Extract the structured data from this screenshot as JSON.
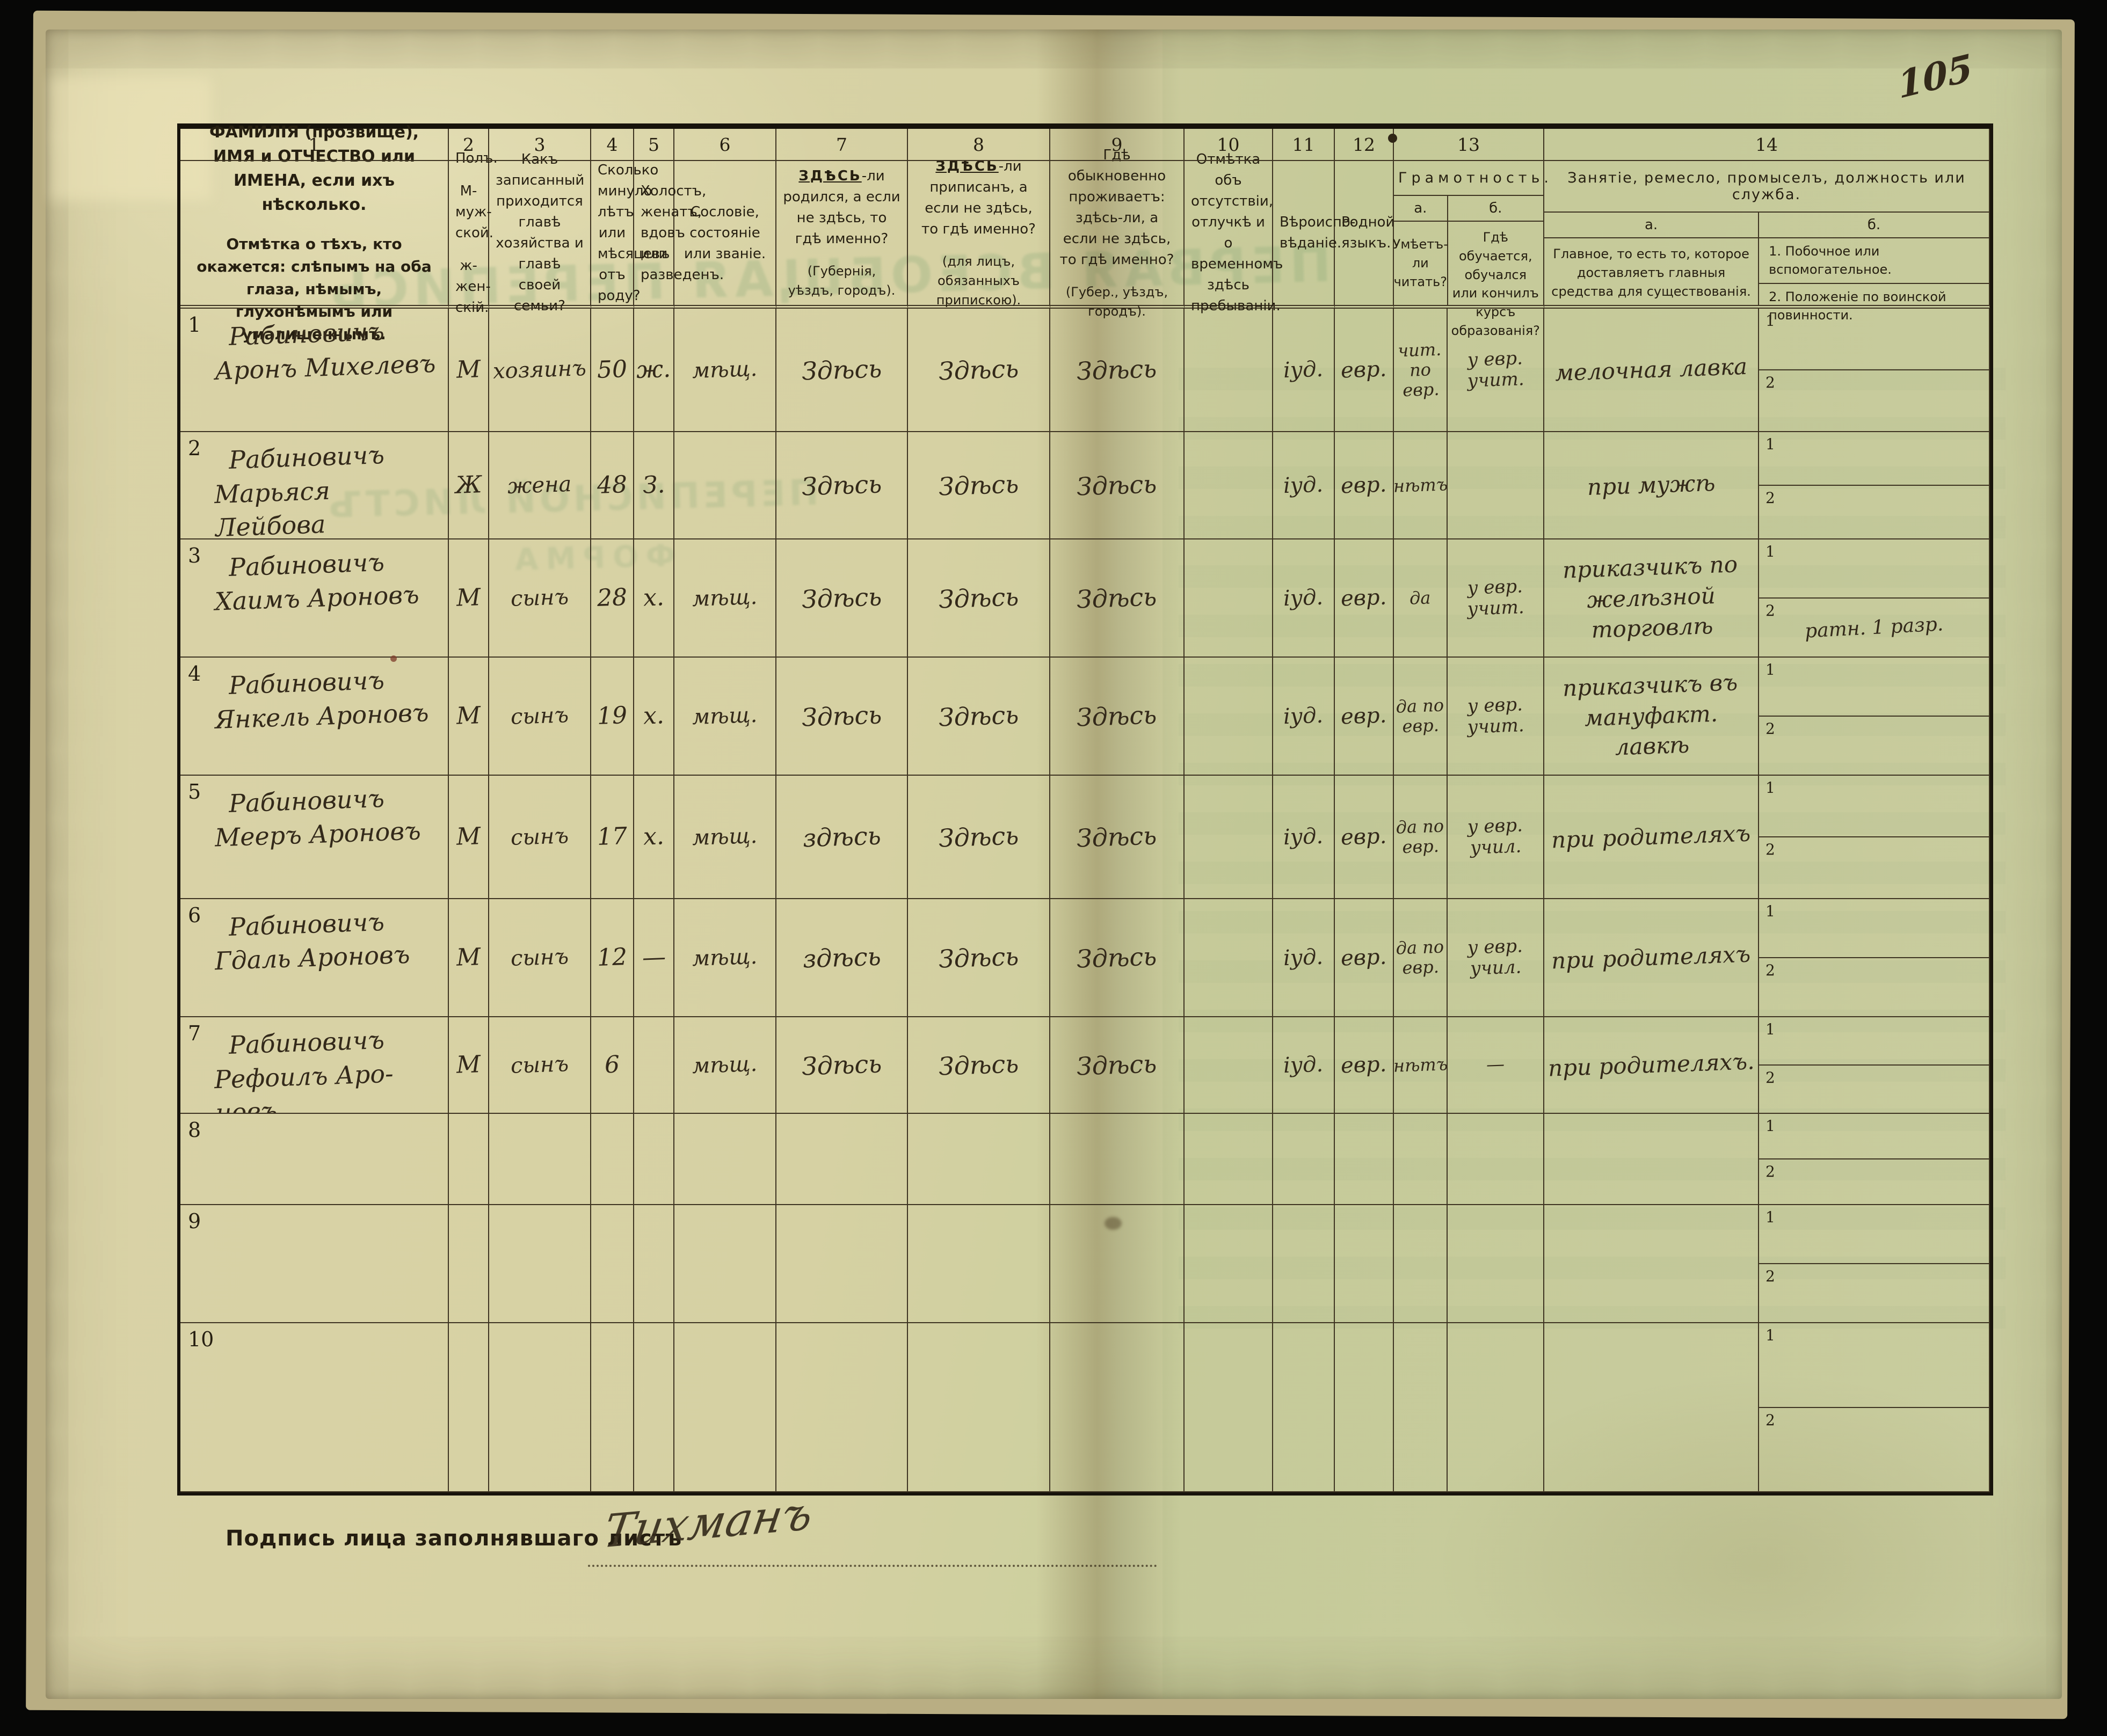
{
  "page": {
    "number": "105",
    "signature_label": "Подпись лица заполнявшаго листъ",
    "signature": "Тихманъ",
    "bleed_1": "ПЕРВАЯ ВСЕОБЩАЯ ПЕРЕПИСЬ",
    "bleed_2": "ПЕРЕПИСНОЙ ЛИСТЪ",
    "bleed_3": "ФОРМА"
  },
  "table": {
    "column_numbers": [
      "1",
      "2",
      "3",
      "4",
      "5",
      "6",
      "7",
      "8",
      "9",
      "10",
      "11",
      "12",
      "13",
      "14"
    ],
    "headers": {
      "c1_line1": "ФАМИЛІЯ (прозвище), ИМЯ и ОТЧЕСТВО или ИМЕНА, если ихъ нѣсколько.",
      "c1_line2": "Отмѣтка о тѣхъ, кто окажется: слѣпымъ на оба глаза, нѣмымъ, глухонѣмымъ или умалишеннымъ.",
      "c2_title": "Полъ.",
      "c2_m": "М-муж-ской.",
      "c2_f": "ж-жен-скій.",
      "c3": "Какъ записанный приходится главѣ хозяйства и главѣ своей семьи?",
      "c4": "Сколько минуло лѣтъ или мѣсяцевъ отъ роду?",
      "c5": "Холостъ, женатъ, вдовъ или разведенъ.",
      "c6": "Сословіе, состояніе или званіе.",
      "c7_emph": "ЗДѢСЬ",
      "c7_rest": "-ли родился, а если не здѣсь, то гдѣ именно?",
      "c7_note": "(Губернія, уѣздъ, городъ).",
      "c8_emph": "ЗДѢСЬ",
      "c8_rest": "-ли приписанъ, а если не здѣсь, то гдѣ именно?",
      "c8_note": "(для лицъ, обязанныхъ припискою).",
      "c9": "Гдѣ обыкновенно проживаетъ: здѣсь-ли, а если не здѣсь, то гдѣ именно?",
      "c9_note": "(Губер., уѣздъ, городъ).",
      "c10": "Отмѣтка объ отсутствіи, отлучкѣ и о временномъ здѣсь пребываніи.",
      "c11": "Вѣроиспо-вѣданіе.",
      "c12": "Родной языкъ.",
      "c13_group": "Грамотность.",
      "c13a_label": "а.",
      "c13b_label": "б.",
      "c13a": "Умѣетъ-ли читать?",
      "c13b": "Гдѣ обучается, обучался или кончилъ курсъ образованія?",
      "c14_group": "Занятіе, ремесло, промыселъ, должность или служба.",
      "c14a_label": "а.",
      "c14b_label": "б.",
      "c14a": "Главное, то есть то, которое доставляетъ главныя средства для существованія.",
      "c14b_1": "1. Побочное или вспомогательное.",
      "c14b_2": "2. Положеніе по воинской повинности."
    },
    "sub_row_labels": [
      "1",
      "2"
    ],
    "rows": [
      {
        "num": "1",
        "surname": "Рабиновичъ",
        "given": "Аронъ Михелевъ",
        "sex": "М",
        "relation": "хозяинъ",
        "age": "50",
        "marital": "ж.",
        "estate": "мѣщ.",
        "born": "Здѣсь",
        "registered": "Здѣсь",
        "resides": "Здѣсь",
        "absence": "",
        "religion": "іуд.",
        "language": "евр.",
        "reads": "чит. по евр.",
        "education": "у евр. учит.",
        "occ_main": "мелочная лавка",
        "occ_side": "",
        "military": ""
      },
      {
        "num": "2",
        "surname": "Рабиновичъ",
        "given": "Марьяся Лейбова",
        "sex": "Ж",
        "relation": "жена",
        "age": "48",
        "marital": "З.",
        "estate": "",
        "born": "Здѣсь",
        "registered": "Здѣсь",
        "resides": "Здѣсь",
        "absence": "",
        "religion": "іуд.",
        "language": "евр.",
        "reads": "нѣтъ",
        "education": "",
        "occ_main": "при мужѣ",
        "occ_side": "",
        "military": ""
      },
      {
        "num": "3",
        "surname": "Рабиновичъ",
        "given": "Хаимъ Ароновъ",
        "sex": "М",
        "relation": "сынъ",
        "age": "28",
        "marital": "х.",
        "estate": "мѣщ.",
        "born": "Здѣсь",
        "registered": "Здѣсь",
        "resides": "Здѣсь",
        "absence": "",
        "religion": "іуд.",
        "language": "евр.",
        "reads": "да",
        "education": "у евр. учит.",
        "occ_main": "приказчикъ по желѣзной торговлѣ",
        "occ_side": "",
        "military": "ратн. 1 разр."
      },
      {
        "num": "4",
        "surname": "Рабиновичъ",
        "given": "Янкель Ароновъ",
        "sex": "М",
        "relation": "сынъ",
        "age": "19",
        "marital": "х.",
        "estate": "мѣщ.",
        "born": "Здѣсь",
        "registered": "Здѣсь",
        "resides": "Здѣсь",
        "absence": "",
        "religion": "іуд.",
        "language": "евр.",
        "reads": "да по евр.",
        "education": "у евр. учит.",
        "occ_main": "приказчикъ въ мануфакт. лавкѣ",
        "occ_side": "",
        "military": ""
      },
      {
        "num": "5",
        "surname": "Рабиновичъ",
        "given": "Мееръ Ароновъ",
        "sex": "М",
        "relation": "сынъ",
        "age": "17",
        "marital": "х.",
        "estate": "мѣщ.",
        "born": "здѣсь",
        "registered": "Здѣсь",
        "resides": "Здѣсь",
        "absence": "",
        "religion": "іуд.",
        "language": "евр.",
        "reads": "да по евр.",
        "education": "у евр. учил.",
        "occ_main": "при родителяхъ",
        "occ_side": "",
        "military": ""
      },
      {
        "num": "6",
        "surname": "Рабиновичъ",
        "given": "Гдаль Ароновъ",
        "sex": "М",
        "relation": "сынъ",
        "age": "12",
        "marital": "—",
        "estate": "мѣщ.",
        "born": "здѣсь",
        "registered": "Здѣсь",
        "resides": "Здѣсь",
        "absence": "",
        "religion": "іуд.",
        "language": "евр.",
        "reads": "да по евр.",
        "education": "у евр. учил.",
        "occ_main": "при родителяхъ",
        "occ_side": "",
        "military": ""
      },
      {
        "num": "7",
        "surname": "Рабиновичъ",
        "given": "Рефоилъ Аро-новъ",
        "sex": "М",
        "relation": "сынъ",
        "age": "6",
        "marital": "",
        "estate": "мѣщ.",
        "born": "Здѣсь",
        "registered": "Здѣсь",
        "resides": "Здѣсь",
        "absence": "",
        "religion": "іуд.",
        "language": "евр.",
        "reads": "нѣтъ",
        "education": "—",
        "occ_main": "при родителяхъ.",
        "occ_side": "",
        "military": ""
      },
      {
        "num": "8",
        "surname": "",
        "given": "",
        "sex": "",
        "relation": "",
        "age": "",
        "marital": "",
        "estate": "",
        "born": "",
        "registered": "",
        "resides": "",
        "absence": "",
        "religion": "",
        "language": "",
        "reads": "",
        "education": "",
        "occ_main": "",
        "occ_side": "",
        "military": ""
      },
      {
        "num": "9",
        "surname": "",
        "given": "",
        "sex": "",
        "relation": "",
        "age": "",
        "marital": "",
        "estate": "",
        "born": "",
        "registered": "",
        "resides": "",
        "absence": "",
        "religion": "",
        "language": "",
        "reads": "",
        "education": "",
        "occ_main": "",
        "occ_side": "",
        "military": ""
      },
      {
        "num": "10",
        "surname": "",
        "given": "",
        "sex": "",
        "relation": "",
        "age": "",
        "marital": "",
        "estate": "",
        "born": "",
        "registered": "",
        "resides": "",
        "absence": "",
        "religion": "",
        "language": "",
        "reads": "",
        "education": "",
        "occ_main": "",
        "occ_side": "",
        "military": ""
      }
    ]
  }
}
